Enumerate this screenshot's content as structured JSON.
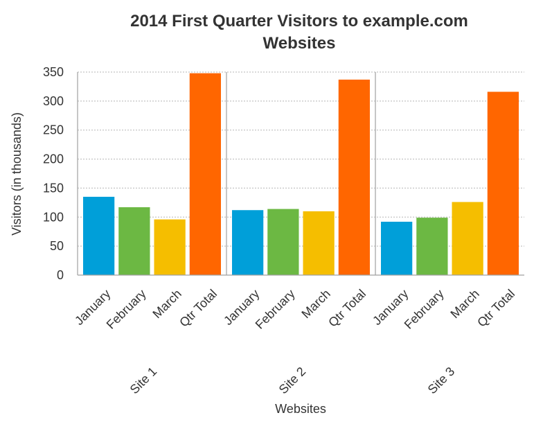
{
  "chart_data": {
    "type": "bar",
    "title": "2014 First Quarter Visitors to example.com Websites",
    "title_lines": [
      "2014 First Quarter Visitors to example.com",
      "Websites"
    ],
    "xlabel": "Websites",
    "ylabel": "Visitors (in thousands)",
    "ylim": [
      0,
      350
    ],
    "yticks": [
      0,
      50,
      100,
      150,
      200,
      250,
      300,
      350
    ],
    "grid": true,
    "legend": "none",
    "categories": [
      "January",
      "February",
      "March",
      "Qtr Total"
    ],
    "category_colors": [
      "#009fd9",
      "#6cb843",
      "#f5be00",
      "#ff6600"
    ],
    "groups": [
      {
        "name": "Site 1",
        "values": [
          135,
          117,
          96,
          348
        ]
      },
      {
        "name": "Site 2",
        "values": [
          112,
          114,
          110,
          337
        ]
      },
      {
        "name": "Site 3",
        "values": [
          92,
          99,
          126,
          316
        ]
      }
    ]
  }
}
